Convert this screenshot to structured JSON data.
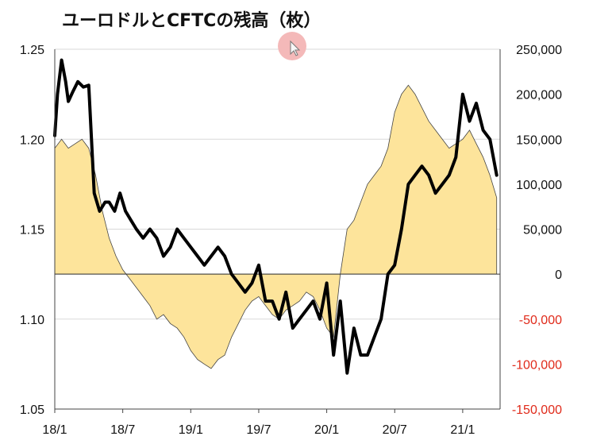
{
  "chart_data": {
    "type": "line",
    "title": "ユーロドルとCFTCの残高（枚）",
    "x_tick_labels": [
      "18/1",
      "18/7",
      "19/1",
      "19/7",
      "20/1",
      "20/7",
      "21/1"
    ],
    "x_tick_dates": [
      2018.0,
      2018.5,
      2019.0,
      2019.5,
      2020.0,
      2020.5,
      2021.0
    ],
    "left_axis": {
      "ticks": [
        "1.05",
        "1.10",
        "1.15",
        "1.20",
        "1.25"
      ],
      "tick_values": [
        1.05,
        1.1,
        1.15,
        1.2,
        1.25
      ],
      "ylim": [
        1.05,
        1.25
      ]
    },
    "right_axis": {
      "ticks": [
        "-150,000",
        "-100,000",
        "-50,000",
        "0",
        "50,000",
        "100,000",
        "150,000",
        "200,000",
        "250,000"
      ],
      "tick_values": [
        -150000,
        -100000,
        -50000,
        0,
        50000,
        100000,
        150000,
        200000,
        250000
      ],
      "ylim": [
        -150000,
        250000
      ],
      "negative_tick_color": "#e02a1a"
    },
    "grid": true,
    "colors": {
      "line": "#000000",
      "area_fill": "#fde49b",
      "area_edge": "#444444",
      "grid": "#d9d9d9"
    },
    "series": [
      {
        "axis": "left",
        "style": "line",
        "x": [
          2018.0,
          2018.02,
          2018.05,
          2018.08,
          2018.1,
          2018.13,
          2018.17,
          2018.21,
          2018.25,
          2018.29,
          2018.33,
          2018.37,
          2018.4,
          2018.44,
          2018.48,
          2018.52,
          2018.56,
          2018.6,
          2018.65,
          2018.7,
          2018.75,
          2018.8,
          2018.85,
          2018.9,
          2018.95,
          2019.0,
          2019.05,
          2019.1,
          2019.15,
          2019.2,
          2019.25,
          2019.3,
          2019.35,
          2019.4,
          2019.45,
          2019.5,
          2019.55,
          2019.6,
          2019.65,
          2019.7,
          2019.75,
          2019.8,
          2019.85,
          2019.9,
          2019.95,
          2020.0,
          2020.05,
          2020.1,
          2020.15,
          2020.2,
          2020.25,
          2020.3,
          2020.35,
          2020.4,
          2020.45,
          2020.5,
          2020.55,
          2020.6,
          2020.65,
          2020.7,
          2020.75,
          2020.8,
          2020.85,
          2020.9,
          2020.95,
          2021.0,
          2021.05,
          2021.1,
          2021.15,
          2021.2,
          2021.25
        ],
        "y": [
          1.202,
          1.225,
          1.244,
          1.232,
          1.221,
          1.226,
          1.232,
          1.229,
          1.23,
          1.17,
          1.16,
          1.165,
          1.165,
          1.16,
          1.17,
          1.16,
          1.155,
          1.15,
          1.145,
          1.15,
          1.145,
          1.135,
          1.14,
          1.15,
          1.145,
          1.14,
          1.135,
          1.13,
          1.135,
          1.14,
          1.135,
          1.125,
          1.12,
          1.115,
          1.12,
          1.13,
          1.11,
          1.11,
          1.1,
          1.115,
          1.095,
          1.1,
          1.105,
          1.11,
          1.1,
          1.12,
          1.08,
          1.11,
          1.07,
          1.095,
          1.08,
          1.08,
          1.09,
          1.1,
          1.125,
          1.13,
          1.15,
          1.175,
          1.18,
          1.185,
          1.18,
          1.17,
          1.175,
          1.18,
          1.19,
          1.225,
          1.21,
          1.22,
          1.205,
          1.2,
          1.18
        ]
      },
      {
        "axis": "right",
        "style": "area",
        "x": [
          2018.0,
          2018.05,
          2018.1,
          2018.15,
          2018.2,
          2018.25,
          2018.3,
          2018.35,
          2018.4,
          2018.45,
          2018.5,
          2018.55,
          2018.6,
          2018.65,
          2018.7,
          2018.75,
          2018.8,
          2018.85,
          2018.9,
          2018.95,
          2019.0,
          2019.05,
          2019.1,
          2019.15,
          2019.2,
          2019.25,
          2019.3,
          2019.35,
          2019.4,
          2019.45,
          2019.5,
          2019.55,
          2019.6,
          2019.65,
          2019.7,
          2019.75,
          2019.8,
          2019.85,
          2019.9,
          2019.95,
          2020.0,
          2020.05,
          2020.1,
          2020.15,
          2020.2,
          2020.25,
          2020.3,
          2020.35,
          2020.4,
          2020.45,
          2020.5,
          2020.55,
          2020.6,
          2020.65,
          2020.7,
          2020.75,
          2020.8,
          2020.85,
          2020.9,
          2020.95,
          2021.0,
          2021.05,
          2021.1,
          2021.15,
          2021.2,
          2021.25
        ],
        "y": [
          140000,
          150000,
          140000,
          145000,
          150000,
          140000,
          110000,
          70000,
          40000,
          20000,
          5000,
          -5000,
          -15000,
          -25000,
          -35000,
          -50000,
          -45000,
          -55000,
          -60000,
          -70000,
          -85000,
          -95000,
          -100000,
          -105000,
          -95000,
          -90000,
          -70000,
          -55000,
          -40000,
          -30000,
          -25000,
          -35000,
          -45000,
          -50000,
          -40000,
          -35000,
          -30000,
          -20000,
          -25000,
          -40000,
          -60000,
          -70000,
          0,
          50000,
          60000,
          80000,
          100000,
          110000,
          120000,
          140000,
          180000,
          200000,
          210000,
          200000,
          185000,
          170000,
          160000,
          150000,
          140000,
          145000,
          150000,
          160000,
          145000,
          130000,
          110000,
          85000
        ]
      }
    ]
  }
}
